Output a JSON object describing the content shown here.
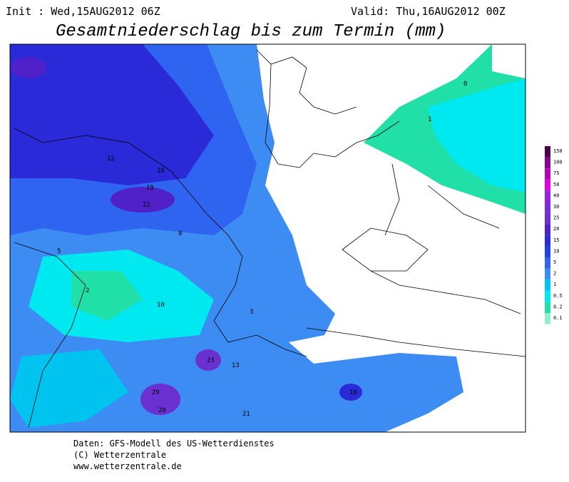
{
  "header": {
    "init": "Init : Wed,15AUG2012 06Z",
    "valid": "Valid: Thu,16AUG2012 00Z",
    "title": "Gesamtniederschlag bis zum Termin (mm)"
  },
  "legend": {
    "labels": [
      "150",
      "100",
      "75",
      "50",
      "40",
      "30",
      "25",
      "20",
      "15",
      "10",
      "5",
      "2",
      "1",
      "0.5",
      "0.2",
      "0.1"
    ],
    "colors": [
      "#4a0048",
      "#8a0090",
      "#b800b8",
      "#e000e0",
      "#9a20e0",
      "#7a2ad8",
      "#6a30d0",
      "#5020c8",
      "#2a2ad8",
      "#2040e8",
      "#2f64f0",
      "#3c8cf4",
      "#00c4f0",
      "#00e8f0",
      "#20e0a8",
      "#90f0c8"
    ]
  },
  "map_labels": [
    "29",
    "23",
    "22",
    "19",
    "20",
    "21",
    "18",
    "16",
    "13",
    "12",
    "10",
    "8",
    "5",
    "3",
    "2",
    "1",
    "0"
  ],
  "footer": {
    "lines": [
      "Daten: GFS-Modell des US-Wetterdienstes",
      "(C) Wetterzentrale",
      "www.wetterzentrale.de"
    ]
  }
}
